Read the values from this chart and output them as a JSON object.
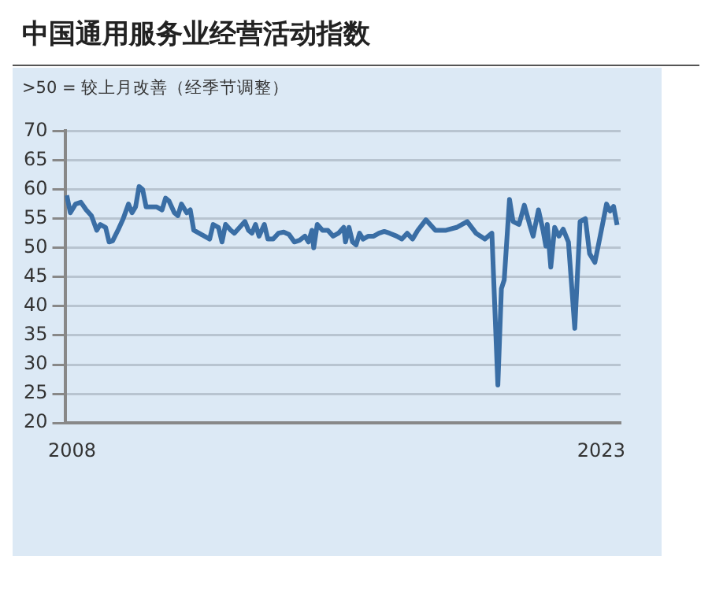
{
  "chart_data": {
    "type": "line",
    "title": "中国通用服务业经营活动指数",
    "subtitle": ">50 = 较上月改善（经季节调整）",
    "x": [
      2007.85,
      2007.95,
      2008.1,
      2008.25,
      2008.4,
      2008.55,
      2008.7,
      2008.8,
      2008.95,
      2009.05,
      2009.15,
      2009.3,
      2009.45,
      2009.6,
      2009.7,
      2009.8,
      2009.9,
      2010.0,
      2010.1,
      2010.25,
      2010.4,
      2010.55,
      2010.65,
      2010.75,
      2010.9,
      2011.0,
      2011.1,
      2011.25,
      2011.35,
      2011.45,
      2011.6,
      2011.75,
      2011.9,
      2012.0,
      2012.15,
      2012.25,
      2012.35,
      2012.5,
      2012.6,
      2012.75,
      2012.9,
      2013.0,
      2013.1,
      2013.2,
      2013.3,
      2013.45,
      2013.55,
      2013.7,
      2013.85,
      2014.0,
      2014.15,
      2014.3,
      2014.45,
      2014.6,
      2014.7,
      2014.8,
      2014.85,
      2014.95,
      2015.1,
      2015.25,
      2015.4,
      2015.55,
      2015.7,
      2015.75,
      2015.85,
      2015.95,
      2016.05,
      2016.15,
      2016.25,
      2016.4,
      2016.55,
      2016.7,
      2016.85,
      2017.0,
      2017.2,
      2017.35,
      2017.5,
      2017.65,
      2017.8,
      2018.03,
      2018.3,
      2018.6,
      2018.9,
      2019.2,
      2019.45,
      2019.7,
      2019.9,
      2020.07,
      2020.17,
      2020.25,
      2020.4,
      2020.5,
      2020.67,
      2020.82,
      2020.97,
      2021.07,
      2021.22,
      2021.35,
      2021.43,
      2021.47,
      2021.57,
      2021.68,
      2021.8,
      2021.92,
      2022.07,
      2022.25,
      2022.4,
      2022.55,
      2022.67,
      2022.82,
      2022.97,
      2023.15,
      2023.25,
      2023.35,
      2023.45
    ],
    "values": [
      59,
      56,
      57.5,
      57.8,
      56.5,
      55.5,
      53,
      54,
      53.5,
      51,
      51.2,
      53,
      55,
      57.5,
      56,
      57,
      60.5,
      60,
      57,
      57,
      57,
      56.5,
      58.5,
      58,
      56,
      55.5,
      57.5,
      56,
      56.5,
      53,
      52.5,
      52,
      51.5,
      54,
      53.5,
      51,
      54,
      53,
      52.5,
      53.5,
      54.5,
      53,
      52.5,
      54,
      52,
      54,
      51.5,
      51.5,
      52.5,
      52.7,
      52.3,
      51,
      51.3,
      52,
      51,
      53,
      50,
      54,
      53,
      53,
      52,
      52.5,
      53.5,
      51,
      53.5,
      51,
      50.5,
      52.5,
      51.5,
      52,
      52,
      52.5,
      52.8,
      52.5,
      52,
      51.5,
      52.5,
      51.5,
      53,
      54.8,
      53,
      53,
      53.5,
      54.5,
      52.5,
      51.5,
      52.5,
      26.5,
      43,
      44.5,
      58.3,
      54.5,
      54,
      57.3,
      54,
      52,
      56.5,
      53,
      50.3,
      54,
      46.7,
      53.5,
      52,
      53.2,
      51,
      36.2,
      54.5,
      55,
      49,
      47.5,
      52,
      57.5,
      56.3,
      57.1,
      53.9
    ],
    "color": "#3a6ea5",
    "xlim": [
      2007.8,
      2023.55
    ],
    "xticks": [
      2008,
      2023
    ],
    "ylim": [
      20,
      70
    ],
    "yticks": [
      20,
      25,
      30,
      35,
      40,
      45,
      50,
      55,
      60,
      65,
      70
    ],
    "grid": "y",
    "legend": false,
    "marker": "none",
    "line_style": "solid"
  }
}
